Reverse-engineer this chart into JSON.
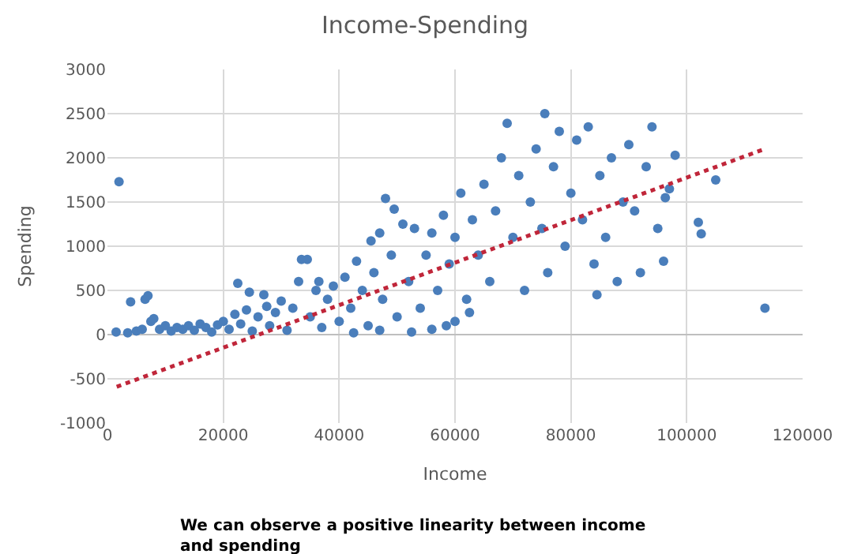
{
  "chart_data": {
    "type": "scatter",
    "title": "Income-Spending",
    "xlabel": "Income",
    "ylabel": "Spending",
    "xlim": [
      0,
      120000
    ],
    "xticks": [
      0,
      20000,
      40000,
      60000,
      80000,
      100000,
      120000
    ],
    "ylim": [
      -1000,
      3000
    ],
    "yticks": [
      -1000,
      -500,
      0,
      500,
      1000,
      1500,
      2000,
      2500,
      3000
    ],
    "grid": true,
    "series": [
      {
        "marker": "circle",
        "color": "#4a7ebb",
        "x": [
          1500,
          2000,
          3500,
          4000,
          5000,
          6000,
          6500,
          7000,
          7500,
          8000,
          9000,
          10000,
          11000,
          12000,
          13000,
          14000,
          15000,
          16000,
          17000,
          18000,
          19000,
          20000,
          21000,
          22000,
          22500,
          23000,
          24000,
          24500,
          25000,
          26000,
          27000,
          27500,
          28000,
          29000,
          30000,
          31000,
          32000,
          33000,
          33500,
          34500,
          35000,
          36000,
          36500,
          37000,
          38000,
          39000,
          40000,
          41000,
          42000,
          42500,
          43000,
          44000,
          45000,
          45500,
          46000,
          47000,
          47000,
          47500,
          48000,
          49000,
          49500,
          50000,
          51000,
          52000,
          52500,
          53000,
          54000,
          55000,
          56000,
          56000,
          57000,
          58000,
          58500,
          59000,
          60000,
          60000,
          61000,
          62000,
          62500,
          63000,
          64000,
          65000,
          66000,
          67000,
          68000,
          69000,
          70000,
          71000,
          72000,
          73000,
          74000,
          75000,
          75500,
          76000,
          77000,
          78000,
          79000,
          80000,
          81000,
          82000,
          83000,
          84000,
          84500,
          85000,
          86000,
          87000,
          88000,
          89000,
          90000,
          91000,
          92000,
          93000,
          94000,
          95000,
          96000,
          96300,
          97000,
          98000,
          102000,
          102500,
          105000,
          113500
        ],
        "values": [
          30,
          1730,
          20,
          370,
          40,
          60,
          400,
          440,
          150,
          180,
          60,
          100,
          40,
          80,
          60,
          100,
          50,
          120,
          80,
          30,
          110,
          150,
          60,
          230,
          580,
          120,
          280,
          480,
          40,
          200,
          450,
          320,
          100,
          250,
          380,
          50,
          300,
          600,
          850,
          850,
          200,
          500,
          600,
          80,
          400,
          550,
          150,
          650,
          300,
          20,
          830,
          500,
          100,
          1060,
          700,
          1150,
          50,
          400,
          1540,
          900,
          1420,
          200,
          1250,
          600,
          30,
          1200,
          300,
          900,
          1150,
          60,
          500,
          1350,
          100,
          800,
          1100,
          150,
          1600,
          400,
          250,
          1300,
          900,
          1700,
          600,
          1400,
          2000,
          2390,
          1100,
          1800,
          500,
          1500,
          2100,
          1200,
          2500,
          700,
          1900,
          2300,
          1000,
          1600,
          2200,
          1300,
          2350,
          800,
          450,
          1800,
          1100,
          2000,
          600,
          1500,
          2150,
          1400,
          700,
          1900,
          2350,
          1200,
          830,
          1550,
          1650,
          2030,
          1270,
          1140,
          1750,
          300
        ]
      },
      {
        "type": "line",
        "color": "#c0263a",
        "line_style": "dotted",
        "marker": "none",
        "x": [
          1600,
          113450
        ],
        "values": [
          -590,
          2100
        ]
      }
    ],
    "annotations": [
      "We can observe a positive linearity between income and spending"
    ]
  }
}
